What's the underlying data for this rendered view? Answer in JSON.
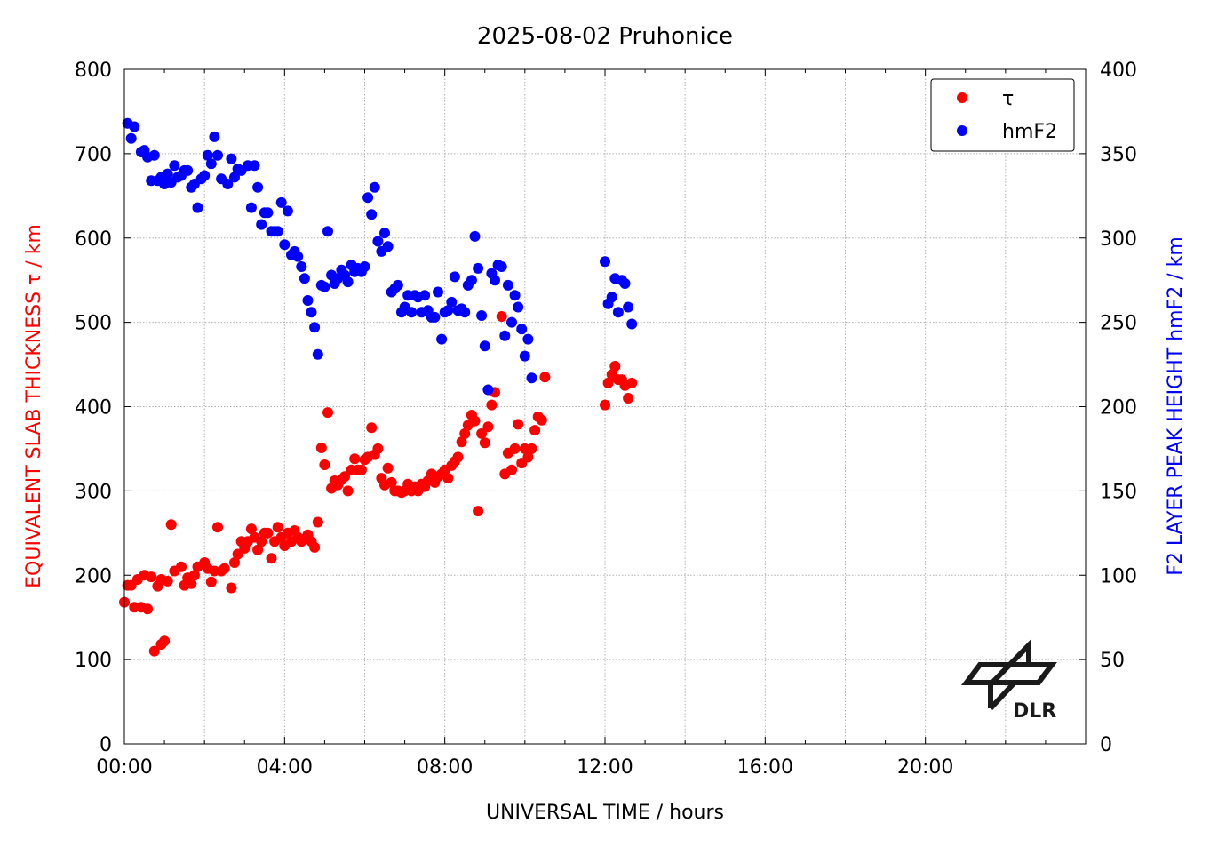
{
  "chart_data": {
    "type": "scatter",
    "title": "2025-08-02 Pruhonice",
    "xlabel": "UNIVERSAL TIME / hours",
    "ylabel_left": "EQUIVALENT SLAB THICKNESS τ / km",
    "ylabel_right": "F2 LAYER PEAK HEIGHT hmF2 / km",
    "xlim": [
      0,
      24
    ],
    "ylim_left": [
      0,
      800
    ],
    "ylim_right": [
      0,
      400
    ],
    "x_ticks": [
      0,
      4,
      8,
      12,
      16,
      20
    ],
    "x_tick_labels": [
      "00:00",
      "04:00",
      "08:00",
      "12:00",
      "16:00",
      "20:00"
    ],
    "y_left_ticks": [
      0,
      100,
      200,
      300,
      400,
      500,
      600,
      700,
      800
    ],
    "y_left_tick_labels": [
      "0",
      "100",
      "200",
      "300",
      "400",
      "500",
      "600",
      "700",
      "800"
    ],
    "y_right_ticks": [
      0,
      50,
      100,
      150,
      200,
      250,
      300,
      350,
      400
    ],
    "y_right_tick_labels": [
      "0",
      "50",
      "100",
      "150",
      "200",
      "250",
      "300",
      "350",
      "400"
    ],
    "grid": true,
    "legend_position": "top-right",
    "logo_text": "DLR",
    "series": [
      {
        "name": "τ",
        "axis": "left",
        "color": "#ff0000",
        "points": [
          [
            0.0,
            168
          ],
          [
            0.08,
            188
          ],
          [
            0.17,
            188
          ],
          [
            0.25,
            162
          ],
          [
            0.33,
            195
          ],
          [
            0.42,
            162
          ],
          [
            0.5,
            200
          ],
          [
            0.58,
            160
          ],
          [
            0.67,
            198
          ],
          [
            0.75,
            110
          ],
          [
            0.83,
            187
          ],
          [
            0.92,
            195
          ],
          [
            0.92,
            118
          ],
          [
            1.0,
            122
          ],
          [
            1.08,
            193
          ],
          [
            1.17,
            260
          ],
          [
            1.25,
            205
          ],
          [
            1.42,
            210
          ],
          [
            1.5,
            188
          ],
          [
            1.58,
            197
          ],
          [
            1.67,
            190
          ],
          [
            1.75,
            200
          ],
          [
            1.83,
            210
          ],
          [
            2.0,
            215
          ],
          [
            2.08,
            208
          ],
          [
            2.17,
            192
          ],
          [
            2.25,
            205
          ],
          [
            2.33,
            257
          ],
          [
            2.42,
            205
          ],
          [
            2.5,
            208
          ],
          [
            2.67,
            185
          ],
          [
            2.75,
            215
          ],
          [
            2.83,
            225
          ],
          [
            2.92,
            240
          ],
          [
            3.0,
            232
          ],
          [
            3.08,
            240
          ],
          [
            3.17,
            255
          ],
          [
            3.25,
            245
          ],
          [
            3.33,
            230
          ],
          [
            3.42,
            240
          ],
          [
            3.5,
            250
          ],
          [
            3.58,
            250
          ],
          [
            3.67,
            220
          ],
          [
            3.75,
            240
          ],
          [
            3.83,
            257
          ],
          [
            3.92,
            245
          ],
          [
            4.0,
            235
          ],
          [
            4.08,
            250
          ],
          [
            4.17,
            240
          ],
          [
            4.25,
            253
          ],
          [
            4.33,
            245
          ],
          [
            4.42,
            240
          ],
          [
            4.5,
            243
          ],
          [
            4.58,
            248
          ],
          [
            4.67,
            240
          ],
          [
            4.75,
            233
          ],
          [
            4.83,
            263
          ],
          [
            4.92,
            351
          ],
          [
            5.0,
            331
          ],
          [
            5.08,
            393
          ],
          [
            5.17,
            303
          ],
          [
            5.25,
            312
          ],
          [
            5.33,
            307
          ],
          [
            5.42,
            313
          ],
          [
            5.5,
            317
          ],
          [
            5.58,
            300
          ],
          [
            5.67,
            325
          ],
          [
            5.75,
            338
          ],
          [
            5.83,
            325
          ],
          [
            5.92,
            325
          ],
          [
            6.0,
            337
          ],
          [
            6.08,
            340
          ],
          [
            6.17,
            375
          ],
          [
            6.25,
            343
          ],
          [
            6.33,
            350
          ],
          [
            6.42,
            315
          ],
          [
            6.5,
            307
          ],
          [
            6.58,
            327
          ],
          [
            6.67,
            310
          ],
          [
            6.75,
            300
          ],
          [
            6.83,
            300
          ],
          [
            6.92,
            298
          ],
          [
            7.0,
            300
          ],
          [
            7.08,
            308
          ],
          [
            7.17,
            300
          ],
          [
            7.25,
            305
          ],
          [
            7.33,
            300
          ],
          [
            7.42,
            308
          ],
          [
            7.5,
            305
          ],
          [
            7.58,
            312
          ],
          [
            7.67,
            320
          ],
          [
            7.75,
            310
          ],
          [
            7.83,
            317
          ],
          [
            7.92,
            320
          ],
          [
            8.0,
            325
          ],
          [
            8.08,
            315
          ],
          [
            8.17,
            330
          ],
          [
            8.25,
            335
          ],
          [
            8.33,
            340
          ],
          [
            8.42,
            358
          ],
          [
            8.5,
            368
          ],
          [
            8.58,
            378
          ],
          [
            8.67,
            390
          ],
          [
            8.75,
            383
          ],
          [
            8.83,
            276
          ],
          [
            8.92,
            368
          ],
          [
            9.0,
            357
          ],
          [
            9.08,
            376
          ],
          [
            9.17,
            402
          ],
          [
            9.25,
            417
          ],
          [
            9.42,
            507
          ],
          [
            9.5,
            320
          ],
          [
            9.58,
            345
          ],
          [
            9.67,
            325
          ],
          [
            9.75,
            350
          ],
          [
            9.83,
            379
          ],
          [
            9.92,
            333
          ],
          [
            10.0,
            350
          ],
          [
            10.08,
            340
          ],
          [
            10.17,
            350
          ],
          [
            10.25,
            372
          ],
          [
            10.33,
            388
          ],
          [
            10.42,
            384
          ],
          [
            10.5,
            435
          ],
          [
            12.0,
            402
          ],
          [
            12.08,
            428
          ],
          [
            12.17,
            438
          ],
          [
            12.25,
            448
          ],
          [
            12.33,
            432
          ],
          [
            12.42,
            432
          ],
          [
            12.5,
            425
          ],
          [
            12.58,
            410
          ],
          [
            12.67,
            428
          ]
        ]
      },
      {
        "name": "hmF2",
        "axis": "right",
        "color": "#0000ff",
        "points": [
          [
            0.08,
            368
          ],
          [
            0.17,
            359
          ],
          [
            0.25,
            366
          ],
          [
            0.42,
            351
          ],
          [
            0.5,
            352
          ],
          [
            0.58,
            348
          ],
          [
            0.67,
            334
          ],
          [
            0.75,
            349
          ],
          [
            0.83,
            334
          ],
          [
            0.92,
            336
          ],
          [
            1.0,
            332
          ],
          [
            1.08,
            338
          ],
          [
            1.17,
            333
          ],
          [
            1.25,
            343
          ],
          [
            1.33,
            336
          ],
          [
            1.42,
            337
          ],
          [
            1.5,
            340
          ],
          [
            1.58,
            340
          ],
          [
            1.67,
            330
          ],
          [
            1.75,
            332
          ],
          [
            1.83,
            318
          ],
          [
            1.92,
            335
          ],
          [
            2.0,
            337
          ],
          [
            2.08,
            349
          ],
          [
            2.17,
            344
          ],
          [
            2.25,
            360
          ],
          [
            2.33,
            349
          ],
          [
            2.42,
            335
          ],
          [
            2.58,
            332
          ],
          [
            2.67,
            347
          ],
          [
            2.75,
            336
          ],
          [
            2.83,
            341
          ],
          [
            2.92,
            340
          ],
          [
            3.08,
            343
          ],
          [
            3.17,
            318
          ],
          [
            3.25,
            343
          ],
          [
            3.33,
            330
          ],
          [
            3.42,
            308
          ],
          [
            3.5,
            315
          ],
          [
            3.58,
            315
          ],
          [
            3.67,
            304
          ],
          [
            3.75,
            304
          ],
          [
            3.83,
            304
          ],
          [
            3.92,
            321
          ],
          [
            4.0,
            296
          ],
          [
            4.08,
            316
          ],
          [
            4.17,
            290
          ],
          [
            4.25,
            292
          ],
          [
            4.33,
            289
          ],
          [
            4.42,
            283
          ],
          [
            4.5,
            276
          ],
          [
            4.58,
            263
          ],
          [
            4.67,
            256
          ],
          [
            4.75,
            247
          ],
          [
            4.83,
            231
          ],
          [
            4.92,
            272
          ],
          [
            5.0,
            271
          ],
          [
            5.08,
            304
          ],
          [
            5.17,
            278
          ],
          [
            5.25,
            273
          ],
          [
            5.33,
            276
          ],
          [
            5.42,
            281
          ],
          [
            5.5,
            278
          ],
          [
            5.58,
            274
          ],
          [
            5.67,
            284
          ],
          [
            5.75,
            280
          ],
          [
            5.83,
            282
          ],
          [
            5.92,
            280
          ],
          [
            6.0,
            283
          ],
          [
            6.08,
            324
          ],
          [
            6.17,
            314
          ],
          [
            6.25,
            330
          ],
          [
            6.33,
            298
          ],
          [
            6.42,
            292
          ],
          [
            6.5,
            303
          ],
          [
            6.58,
            295
          ],
          [
            6.67,
            268
          ],
          [
            6.75,
            270
          ],
          [
            6.83,
            272
          ],
          [
            6.92,
            256
          ],
          [
            7.0,
            259
          ],
          [
            7.08,
            266
          ],
          [
            7.17,
            256
          ],
          [
            7.25,
            266
          ],
          [
            7.33,
            265
          ],
          [
            7.42,
            256
          ],
          [
            7.5,
            266
          ],
          [
            7.58,
            257
          ],
          [
            7.67,
            253
          ],
          [
            7.75,
            253
          ],
          [
            7.83,
            268
          ],
          [
            7.92,
            240
          ],
          [
            8.0,
            256
          ],
          [
            8.08,
            257
          ],
          [
            8.17,
            262
          ],
          [
            8.25,
            277
          ],
          [
            8.33,
            257
          ],
          [
            8.42,
            258
          ],
          [
            8.5,
            256
          ],
          [
            8.58,
            272
          ],
          [
            8.67,
            275
          ],
          [
            8.75,
            301
          ],
          [
            8.83,
            282
          ],
          [
            8.92,
            254
          ],
          [
            9.0,
            236
          ],
          [
            9.08,
            210
          ],
          [
            9.17,
            279
          ],
          [
            9.25,
            275
          ],
          [
            9.33,
            284
          ],
          [
            9.42,
            283
          ],
          [
            9.5,
            242
          ],
          [
            9.58,
            272
          ],
          [
            9.67,
            250
          ],
          [
            9.75,
            266
          ],
          [
            9.83,
            259
          ],
          [
            9.92,
            246
          ],
          [
            10.0,
            230
          ],
          [
            10.08,
            240
          ],
          [
            10.17,
            217
          ],
          [
            12.0,
            286
          ],
          [
            12.08,
            261
          ],
          [
            12.17,
            265
          ],
          [
            12.25,
            276
          ],
          [
            12.33,
            256
          ],
          [
            12.42,
            275
          ],
          [
            12.5,
            273
          ],
          [
            12.58,
            259
          ],
          [
            12.67,
            249
          ]
        ]
      }
    ]
  }
}
